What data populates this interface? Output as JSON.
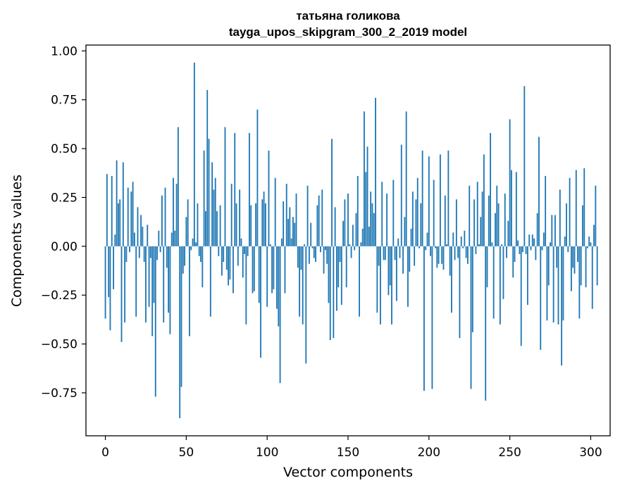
{
  "chart_data": {
    "type": "bar",
    "title_line1": "татьяна голикова",
    "title_line2": "tayga_upos_skipgram_300_2_2019 model",
    "xlabel": "Vector components",
    "ylabel": "Components values",
    "xlim": [
      -12,
      312
    ],
    "ylim": [
      -0.97,
      1.03
    ],
    "xticks": [
      0,
      50,
      100,
      150,
      200,
      250,
      300
    ],
    "xtick_labels": [
      "0",
      "50",
      "100",
      "150",
      "200",
      "250",
      "300"
    ],
    "yticks": [
      1.0,
      0.75,
      0.5,
      0.25,
      0.0,
      -0.25,
      -0.5,
      -0.75
    ],
    "ytick_labels": [
      "1.00",
      "0.75",
      "0.50",
      "0.25",
      "0.00",
      "−0.25",
      "−0.50",
      "−0.75"
    ],
    "bar_color": "#1f77b4",
    "series": [
      {
        "name": "components",
        "values": [
          -0.37,
          0.37,
          -0.26,
          -0.43,
          0.36,
          -0.22,
          0.06,
          0.44,
          0.22,
          0.24,
          -0.49,
          0.43,
          -0.39,
          -0.08,
          0.3,
          -0.03,
          0.28,
          0.33,
          0.07,
          -0.36,
          0.2,
          -0.06,
          0.16,
          0.1,
          -0.08,
          -0.39,
          0.11,
          -0.31,
          -0.06,
          -0.46,
          -0.29,
          -0.77,
          -0.07,
          0.08,
          -0.03,
          0.26,
          -0.39,
          0.3,
          -0.11,
          -0.34,
          -0.45,
          0.07,
          0.35,
          0.08,
          0.32,
          0.61,
          -0.88,
          -0.72,
          -0.14,
          -0.1,
          0.15,
          0.24,
          -0.46,
          -0.02,
          0.04,
          0.94,
          0.02,
          0.22,
          -0.05,
          -0.08,
          -0.21,
          0.49,
          0.18,
          0.8,
          0.55,
          -0.36,
          0.43,
          0.29,
          0.35,
          0.18,
          -0.05,
          0.21,
          -0.15,
          -0.08,
          0.61,
          -0.12,
          -0.2,
          -0.17,
          0.32,
          -0.24,
          0.58,
          0.22,
          -0.1,
          0.29,
          0.04,
          -0.16,
          -0.04,
          -0.4,
          -0.05,
          0.58,
          0.21,
          -0.24,
          -0.23,
          0.22,
          0.7,
          -0.29,
          -0.57,
          0.24,
          0.28,
          0.22,
          -0.31,
          0.49,
          0.01,
          -0.24,
          -0.22,
          0.35,
          -0.32,
          -0.41,
          -0.7,
          0.04,
          0.23,
          -0.24,
          0.32,
          0.14,
          0.2,
          0.04,
          0.15,
          0.12,
          0.27,
          -0.11,
          -0.36,
          -0.12,
          -0.4,
          0.01,
          -0.6,
          0.31,
          -0.09,
          0.12,
          -0.01,
          -0.06,
          -0.08,
          0.21,
          0.26,
          -0.03,
          0.29,
          -0.14,
          -0.02,
          -0.09,
          -0.29,
          -0.48,
          0.55,
          -0.47,
          0.2,
          -0.33,
          -0.21,
          -0.08,
          -0.3,
          0.13,
          0.24,
          -0.21,
          0.27,
          0.01,
          -0.06,
          0.11,
          -0.02,
          0.17,
          0.36,
          -0.36,
          0.02,
          0.09,
          0.69,
          0.38,
          0.51,
          0.1,
          0.28,
          0.22,
          0.17,
          0.76,
          -0.34,
          -0.1,
          -0.4,
          0.33,
          -0.07,
          -0.07,
          0.27,
          -0.25,
          -0.2,
          -0.4,
          0.34,
          -0.07,
          -0.28,
          0.04,
          -0.06,
          0.52,
          -0.14,
          0.15,
          0.69,
          -0.31,
          -0.13,
          0.09,
          0.28,
          -0.1,
          0.24,
          0.35,
          -0.01,
          0.22,
          0.49,
          -0.74,
          -0.02,
          0.07,
          0.46,
          -0.05,
          -0.73,
          0.34,
          -0.01,
          -0.11,
          -0.09,
          0.47,
          -0.09,
          -0.12,
          0.26,
          0.01,
          0.49,
          -0.15,
          -0.34,
          0.07,
          -0.07,
          0.24,
          -0.06,
          -0.47,
          0.05,
          -0.01,
          0.08,
          -0.06,
          -0.09,
          0.31,
          -0.73,
          -0.44,
          0.24,
          -0.04,
          0.33,
          0.01,
          0.15,
          0.28,
          0.47,
          -0.79,
          -0.21,
          0.26,
          0.58,
          0.02,
          -0.37,
          0.17,
          0.31,
          0.22,
          -0.4,
          0.01,
          -0.27,
          0.27,
          -0.06,
          0.13,
          0.65,
          0.39,
          -0.16,
          -0.08,
          0.38,
          0.03,
          -0.04,
          -0.51,
          -0.03,
          0.82,
          -0.04,
          -0.3,
          0.06,
          -0.02,
          0.06,
          0.04,
          -0.07,
          0.17,
          0.56,
          -0.53,
          -0.02,
          0.07,
          0.36,
          -0.38,
          -0.2,
          0.02,
          0.16,
          -0.39,
          0.16,
          -0.11,
          -0.4,
          0.29,
          -0.61,
          -0.38,
          0.05,
          0.22,
          -0.03,
          0.35,
          -0.23,
          -0.11,
          -0.14,
          0.39,
          -0.08,
          -0.37,
          -0.2,
          0.21,
          0.4,
          -0.21,
          -0.01,
          0.05,
          0.02,
          -0.32,
          0.11,
          0.31,
          -0.2
        ]
      }
    ]
  }
}
